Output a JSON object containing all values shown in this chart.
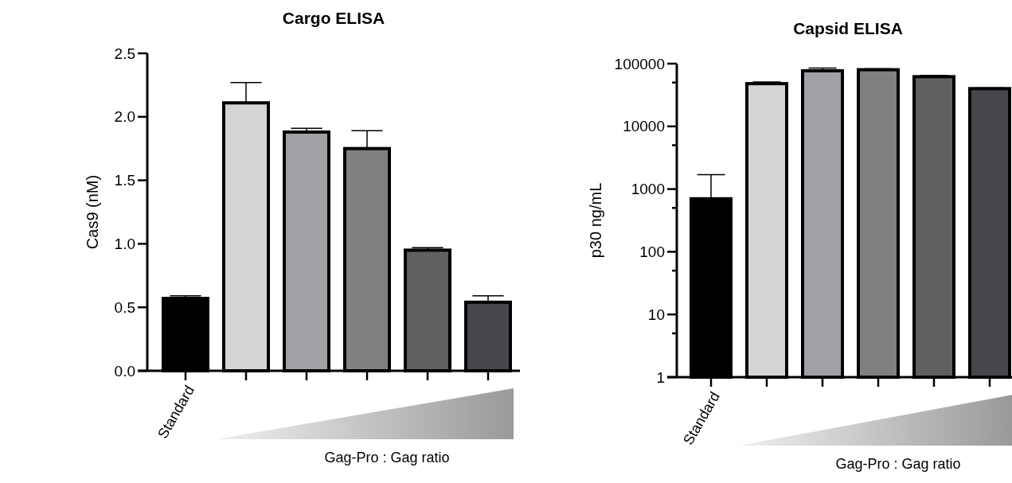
{
  "chart_data": [
    {
      "type": "bar",
      "title": "Cargo ELISA",
      "ylabel": "Cas9 (nM)",
      "categories": [
        "Standard",
        null,
        null,
        null,
        null,
        null
      ],
      "values": [
        0.57,
        2.11,
        1.88,
        1.75,
        0.95,
        0.54
      ],
      "colors": [
        "#000000",
        "#d4d4d4",
        "#a1a0a5",
        "#808080",
        "#606060",
        "#47464b"
      ],
      "errors": [
        [
          0.57,
          0.59
        ],
        [
          2.11,
          2.27
        ],
        [
          1.88,
          1.91
        ],
        [
          1.75,
          1.89
        ],
        [
          0.95,
          0.97
        ],
        [
          0.54,
          0.59
        ]
      ],
      "ylim": [
        0,
        2.5
      ],
      "yticks": [
        {
          "value": 0,
          "label": "0.0"
        },
        {
          "value": 0.5,
          "label": "0.5"
        },
        {
          "value": 1,
          "label": "1.0"
        },
        {
          "value": 1.5,
          "label": "1.5"
        },
        {
          "value": 2,
          "label": "2.0"
        },
        {
          "value": 2.5,
          "label": "2.5"
        }
      ],
      "grid": false,
      "annotations": [
        "Gag-Pro : Gag ratio"
      ]
    },
    {
      "type": "bar",
      "title": "Capsid ELISA",
      "ylabel": "p30 ng/mL",
      "categories": [
        "Standard",
        null,
        null,
        null,
        null,
        null
      ],
      "values": [
        700,
        48000,
        77000,
        80000,
        62000,
        40000
      ],
      "colors": [
        "#000000",
        "#d4d4d4",
        "#a1a0a5",
        "#808080",
        "#606060",
        "#47464b"
      ],
      "errors": [
        [
          700,
          1700
        ],
        [
          48000,
          51000
        ],
        [
          77000,
          85000
        ],
        [
          80000,
          83000
        ],
        [
          62000,
          65000
        ],
        [
          40000,
          41000
        ]
      ],
      "log": true,
      "ylim": [
        1,
        100000
      ],
      "yticks": [
        1,
        {
          "value": 5,
          "label": null
        },
        10,
        {
          "value": 50,
          "label": null
        },
        100,
        {
          "value": 500,
          "label": null
        },
        1000,
        {
          "value": 5000,
          "label": null
        },
        10000,
        {
          "value": 50000,
          "label": null
        },
        100000
      ],
      "grid": false,
      "annotations": [
        "Gag-Pro : Gag ratio"
      ]
    }
  ]
}
